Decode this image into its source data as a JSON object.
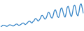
{
  "chart_data": {
    "type": "line",
    "color": "#3a87c8",
    "values": [
      10,
      11,
      14,
      14,
      13,
      11,
      11,
      12,
      15,
      15,
      14,
      12,
      12,
      14,
      17,
      18,
      16,
      13,
      15,
      17,
      20,
      21,
      19,
      16,
      19,
      22,
      26,
      27,
      24,
      21,
      25,
      28,
      34,
      35,
      31,
      27,
      31,
      36,
      44,
      45,
      40,
      34,
      35,
      42,
      53,
      55,
      48,
      39,
      37,
      46,
      60,
      63,
      54,
      42,
      39,
      50,
      66,
      69,
      58,
      45,
      40,
      52,
      71,
      74,
      62,
      47,
      42,
      55,
      74,
      78,
      65,
      49,
      44,
      57,
      78,
      82,
      69,
      52
    ],
    "ylim": [
      0,
      90
    ],
    "grid": false,
    "tick_labels": false
  }
}
